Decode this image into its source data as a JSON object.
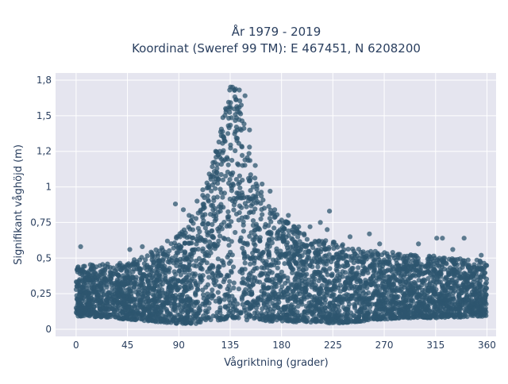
{
  "chart_data": {
    "type": "scatter",
    "title_line1": "År 1979 - 2019",
    "title_line2": "Koordinat (Sweref 99 TM): E 467451, N 6208200",
    "xlabel": "Vågriktning (grader)",
    "ylabel": "Signifikant våghöjd (m)",
    "xlim": [
      -18,
      368
    ],
    "ylim": [
      -0.05,
      1.8
    ],
    "x_ticks": [
      0,
      45,
      90,
      135,
      180,
      225,
      270,
      315,
      360
    ],
    "x_tick_labels": [
      "0",
      "45",
      "90",
      "135",
      "180",
      "225",
      "270",
      "315",
      "360"
    ],
    "y_ticks": [
      0,
      0.25,
      0.5,
      0.75,
      1,
      1.25,
      1.5,
      1.75
    ],
    "y_tick_labels": [
      "0",
      "0,25",
      "0,5",
      "0,75",
      "1",
      "1,2",
      "1,5",
      "1,8"
    ],
    "grid": true,
    "marker_color": "#2e566f",
    "envelope": {
      "x": [
        0,
        15,
        30,
        45,
        60,
        75,
        90,
        105,
        115,
        125,
        130,
        135,
        140,
        145,
        150,
        155,
        165,
        180,
        195,
        210,
        225,
        240,
        255,
        270,
        285,
        300,
        315,
        330,
        345,
        360
      ],
      "y_min": [
        0.09,
        0.09,
        0.08,
        0.07,
        0.06,
        0.05,
        0.04,
        0.04,
        0.05,
        0.06,
        0.07,
        0.08,
        0.08,
        0.07,
        0.06,
        0.06,
        0.06,
        0.05,
        0.05,
        0.05,
        0.04,
        0.05,
        0.06,
        0.07,
        0.08,
        0.08,
        0.08,
        0.08,
        0.09,
        0.09
      ],
      "y_max": [
        0.44,
        0.46,
        0.46,
        0.47,
        0.52,
        0.58,
        0.66,
        0.83,
        1.05,
        1.35,
        1.55,
        1.7,
        1.72,
        1.62,
        1.4,
        1.1,
        0.92,
        0.78,
        0.7,
        0.63,
        0.62,
        0.58,
        0.55,
        0.55,
        0.53,
        0.52,
        0.52,
        0.5,
        0.5,
        0.47
      ]
    },
    "outliers": [
      {
        "x": 4,
        "y": 0.58
      },
      {
        "x": 47,
        "y": 0.56
      },
      {
        "x": 58,
        "y": 0.58
      },
      {
        "x": 80,
        "y": 0.62
      },
      {
        "x": 87,
        "y": 0.88
      },
      {
        "x": 94,
        "y": 0.84
      },
      {
        "x": 99,
        "y": 0.8
      },
      {
        "x": 106,
        "y": 0.9
      },
      {
        "x": 111,
        "y": 0.98
      },
      {
        "x": 118,
        "y": 1.07
      },
      {
        "x": 126,
        "y": 1.25
      },
      {
        "x": 131,
        "y": 1.55
      },
      {
        "x": 137,
        "y": 1.7
      },
      {
        "x": 143,
        "y": 1.68
      },
      {
        "x": 148,
        "y": 1.64
      },
      {
        "x": 152,
        "y": 1.4
      },
      {
        "x": 157,
        "y": 1.15
      },
      {
        "x": 163,
        "y": 1.02
      },
      {
        "x": 170,
        "y": 0.97
      },
      {
        "x": 174,
        "y": 0.84
      },
      {
        "x": 186,
        "y": 0.8
      },
      {
        "x": 195,
        "y": 0.72
      },
      {
        "x": 205,
        "y": 0.72
      },
      {
        "x": 214,
        "y": 0.75
      },
      {
        "x": 220,
        "y": 0.7
      },
      {
        "x": 222,
        "y": 0.83
      },
      {
        "x": 240,
        "y": 0.65
      },
      {
        "x": 257,
        "y": 0.67
      },
      {
        "x": 266,
        "y": 0.6
      },
      {
        "x": 300,
        "y": 0.6
      },
      {
        "x": 316,
        "y": 0.64
      },
      {
        "x": 321,
        "y": 0.64
      },
      {
        "x": 330,
        "y": 0.56
      },
      {
        "x": 340,
        "y": 0.64
      },
      {
        "x": 355,
        "y": 0.52
      }
    ]
  }
}
